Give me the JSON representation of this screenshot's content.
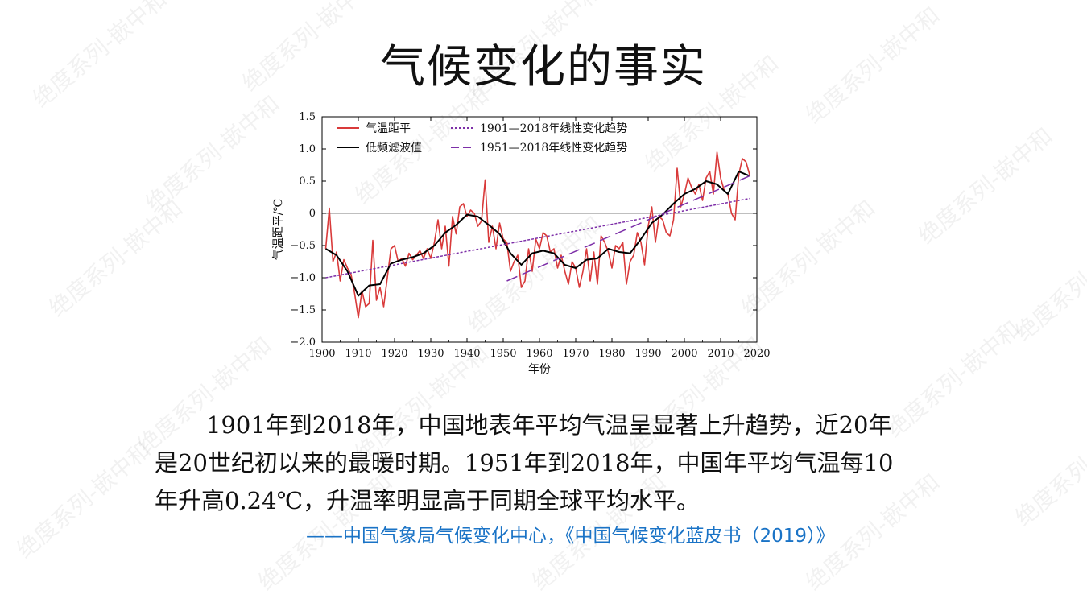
{
  "page": {
    "title": "气候变化的事实",
    "paragraph_lines": [
      "1901年到2018年，中国地表年平均气温呈显著上升趋势，近20年",
      "是20世纪初以来的最暖时期。1951年到2018年，中国年平均气温每10",
      "年升高0.24℃，升温率明显高于同期全球平均水平。"
    ],
    "source": "——中国气象局气候变化中心，《中国气候变化蓝皮书（2019）》",
    "watermark": "绝度系列-嵌中和"
  },
  "chart_data": {
    "type": "line",
    "xlabel": "年份",
    "ylabel": "气温距平/℃",
    "xlim": [
      1900,
      2020
    ],
    "ylim": [
      -2.0,
      1.5
    ],
    "xticks": [
      "1900",
      "1910",
      "1920",
      "1930",
      "1940",
      "1950",
      "1960",
      "1970",
      "1980",
      "1990",
      "2000",
      "2010",
      "2020"
    ],
    "yticks": [
      "1.5",
      "1.0",
      "0.5",
      "0",
      "−0.5",
      "−1.0",
      "−1.5",
      "−2.0"
    ],
    "legend_position": "top-left",
    "zero_line": true,
    "series": [
      {
        "name": "气温距平",
        "color": "#d93a3a",
        "style": "solid",
        "x": [
          1901,
          1902,
          1903,
          1904,
          1905,
          1906,
          1907,
          1908,
          1909,
          1910,
          1911,
          1912,
          1913,
          1914,
          1915,
          1916,
          1917,
          1918,
          1919,
          1920,
          1921,
          1922,
          1923,
          1924,
          1925,
          1926,
          1927,
          1928,
          1929,
          1930,
          1931,
          1932,
          1933,
          1934,
          1935,
          1936,
          1937,
          1938,
          1939,
          1940,
          1941,
          1942,
          1943,
          1944,
          1945,
          1946,
          1947,
          1948,
          1949,
          1950,
          1951,
          1952,
          1953,
          1954,
          1955,
          1956,
          1957,
          1958,
          1959,
          1960,
          1961,
          1962,
          1963,
          1964,
          1965,
          1966,
          1967,
          1968,
          1969,
          1970,
          1971,
          1972,
          1973,
          1974,
          1975,
          1976,
          1977,
          1978,
          1979,
          1980,
          1981,
          1982,
          1983,
          1984,
          1985,
          1986,
          1987,
          1988,
          1989,
          1990,
          1991,
          1992,
          1993,
          1994,
          1995,
          1996,
          1997,
          1998,
          1999,
          2000,
          2001,
          2002,
          2003,
          2004,
          2005,
          2006,
          2007,
          2008,
          2009,
          2010,
          2011,
          2012,
          2013,
          2014,
          2015,
          2016,
          2017,
          2018
        ],
        "values": [
          -0.55,
          0.08,
          -0.75,
          -0.6,
          -1.05,
          -0.72,
          -0.85,
          -0.95,
          -1.25,
          -1.62,
          -1.2,
          -1.45,
          -1.4,
          -0.42,
          -1.35,
          -1.15,
          -1.45,
          -1.0,
          -0.55,
          -0.5,
          -0.75,
          -0.7,
          -0.82,
          -0.62,
          -0.72,
          -0.65,
          -0.58,
          -0.7,
          -0.55,
          -0.7,
          -0.45,
          -0.1,
          -0.55,
          -0.2,
          -0.82,
          -0.05,
          -0.32,
          0.1,
          0.15,
          -0.05,
          0.05,
          0.0,
          -0.2,
          -0.12,
          0.52,
          -0.45,
          -0.2,
          -0.55,
          -0.15,
          -0.4,
          -0.45,
          -0.9,
          -0.75,
          -0.65,
          -1.15,
          -1.05,
          -0.55,
          -0.9,
          -0.4,
          -0.55,
          -0.3,
          -0.35,
          -0.6,
          -0.55,
          -0.85,
          -0.65,
          -0.9,
          -1.1,
          -0.75,
          -0.85,
          -1.15,
          -0.9,
          -0.55,
          -1.05,
          -0.6,
          -1.1,
          -0.35,
          -0.45,
          -0.6,
          -0.85,
          -0.5,
          -0.55,
          -0.45,
          -1.1,
          -0.75,
          -0.65,
          -0.3,
          -0.45,
          -0.8,
          -0.2,
          0.1,
          -0.45,
          -0.05,
          -0.1,
          -0.3,
          -0.35,
          -0.1,
          0.7,
          0.1,
          0.3,
          0.55,
          0.4,
          0.3,
          0.45,
          0.2,
          0.55,
          0.65,
          0.3,
          0.95,
          0.55,
          0.35,
          0.3,
          0.0,
          -0.1,
          0.6,
          0.85,
          0.8,
          0.6
        ]
      },
      {
        "name": "低频滤波值",
        "color": "#000000",
        "style": "solid",
        "x": [
          1901,
          1904,
          1907,
          1910,
          1913,
          1916,
          1919,
          1922,
          1925,
          1928,
          1931,
          1934,
          1937,
          1940,
          1943,
          1946,
          1949,
          1952,
          1955,
          1958,
          1961,
          1964,
          1967,
          1970,
          1973,
          1976,
          1979,
          1982,
          1985,
          1988,
          1991,
          1994,
          1997,
          2000,
          2003,
          2006,
          2009,
          2012,
          2015,
          2018
        ],
        "values": [
          -0.55,
          -0.65,
          -0.9,
          -1.28,
          -1.12,
          -1.1,
          -0.78,
          -0.72,
          -0.68,
          -0.62,
          -0.5,
          -0.3,
          -0.18,
          -0.02,
          -0.05,
          -0.18,
          -0.32,
          -0.62,
          -0.8,
          -0.62,
          -0.58,
          -0.62,
          -0.8,
          -0.85,
          -0.72,
          -0.7,
          -0.55,
          -0.6,
          -0.62,
          -0.4,
          -0.15,
          -0.02,
          0.15,
          0.3,
          0.38,
          0.5,
          0.45,
          0.3,
          0.65,
          0.58
        ]
      },
      {
        "name": "1901—2018年线性变化趋势",
        "color": "#7d2fa8",
        "style": "short-dash",
        "x": [
          1901,
          2018
        ],
        "values": [
          -1.0,
          0.23
        ]
      },
      {
        "name": "1951—2018年线性变化趋势",
        "color": "#7d2fa8",
        "style": "long-dash",
        "x": [
          1951,
          2018
        ],
        "values": [
          -1.05,
          0.58
        ]
      }
    ]
  }
}
